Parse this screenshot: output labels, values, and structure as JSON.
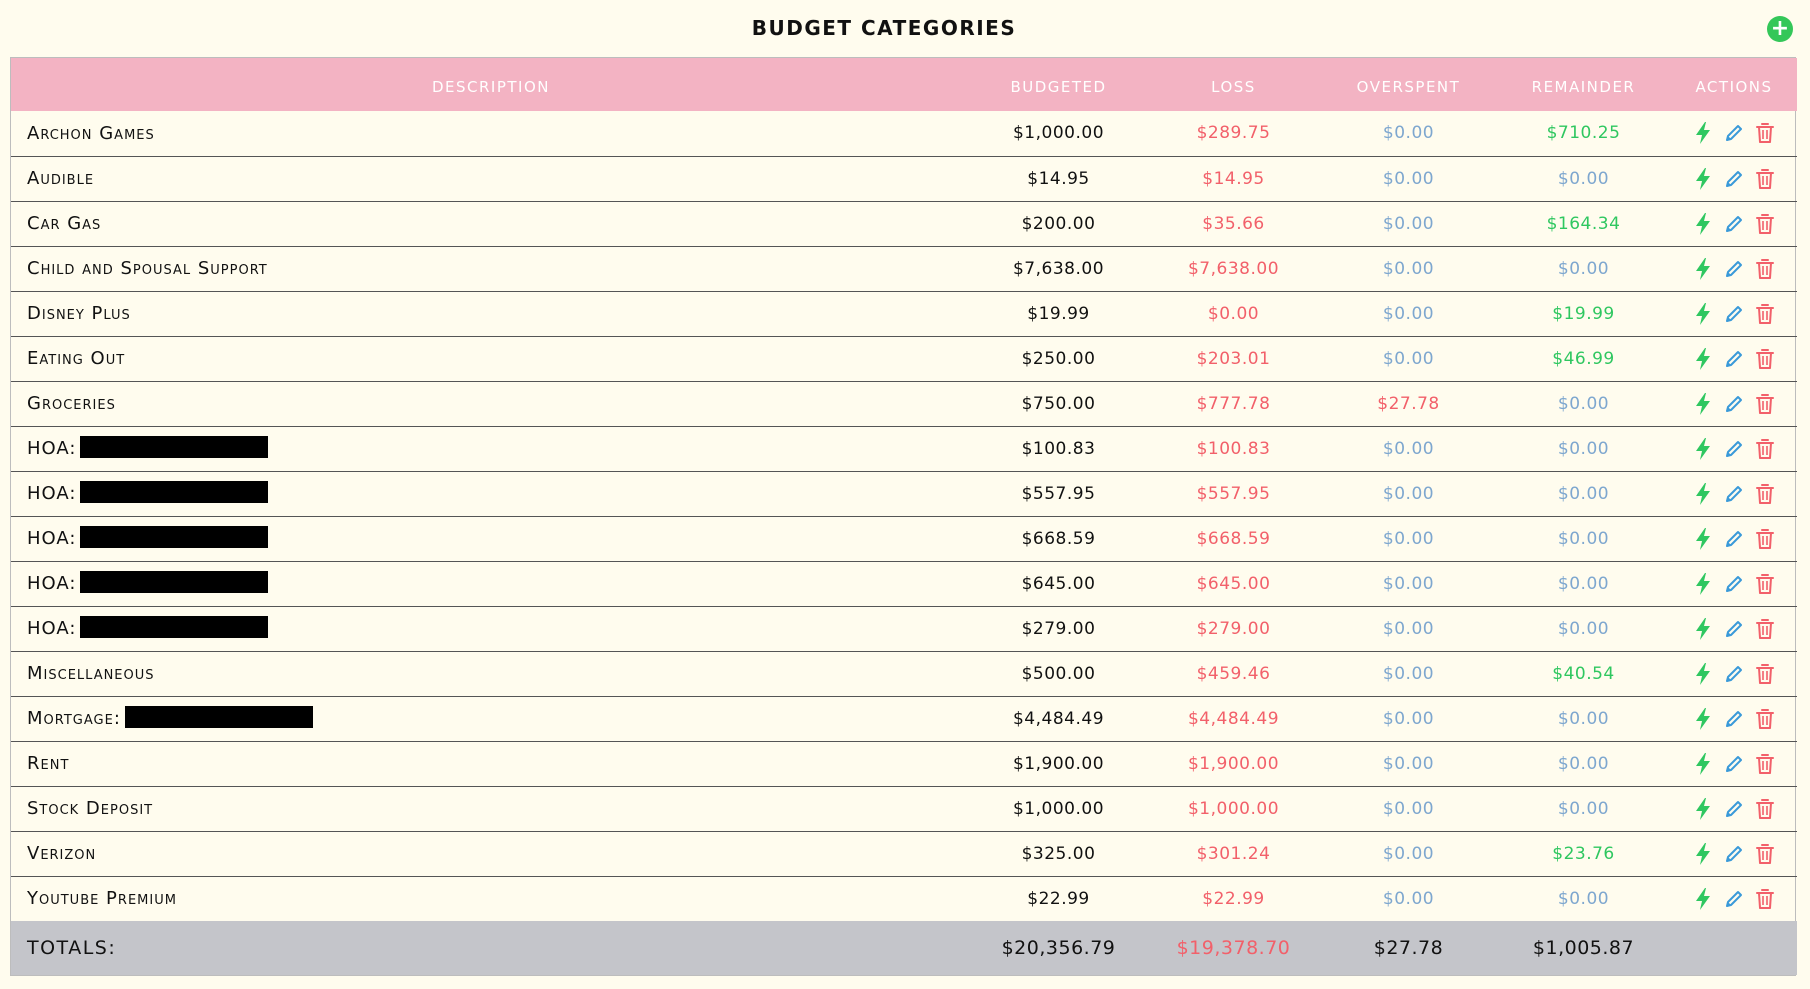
{
  "header": {
    "title": "BUDGET CATEGORIES",
    "add_label": "+"
  },
  "columns": [
    "Description",
    "Budgeted",
    "Loss",
    "Overspent",
    "Remainder",
    "Actions"
  ],
  "rows": [
    {
      "description": "Archon Games",
      "redacted": false,
      "budgeted": "$1,000.00",
      "loss": "$289.75",
      "overspent": "$0.00",
      "remainder": "$710.25"
    },
    {
      "description": "Audible",
      "redacted": false,
      "budgeted": "$14.95",
      "loss": "$14.95",
      "overspent": "$0.00",
      "remainder": "$0.00"
    },
    {
      "description": "Car Gas",
      "redacted": false,
      "budgeted": "$200.00",
      "loss": "$35.66",
      "overspent": "$0.00",
      "remainder": "$164.34"
    },
    {
      "description": "Child and Spousal Support",
      "redacted": false,
      "budgeted": "$7,638.00",
      "loss": "$7,638.00",
      "overspent": "$0.00",
      "remainder": "$0.00"
    },
    {
      "description": "Disney Plus",
      "redacted": false,
      "budgeted": "$19.99",
      "loss": "$0.00",
      "overspent": "$0.00",
      "remainder": "$19.99"
    },
    {
      "description": "Eating Out",
      "redacted": false,
      "budgeted": "$250.00",
      "loss": "$203.01",
      "overspent": "$0.00",
      "remainder": "$46.99"
    },
    {
      "description": "Groceries",
      "redacted": false,
      "budgeted": "$750.00",
      "loss": "$777.78",
      "overspent": "$27.78",
      "remainder": "$0.00"
    },
    {
      "description": "HOA:",
      "redacted": true,
      "budgeted": "$100.83",
      "loss": "$100.83",
      "overspent": "$0.00",
      "remainder": "$0.00"
    },
    {
      "description": "HOA:",
      "redacted": true,
      "budgeted": "$557.95",
      "loss": "$557.95",
      "overspent": "$0.00",
      "remainder": "$0.00"
    },
    {
      "description": "HOA:",
      "redacted": true,
      "budgeted": "$668.59",
      "loss": "$668.59",
      "overspent": "$0.00",
      "remainder": "$0.00"
    },
    {
      "description": "HOA:",
      "redacted": true,
      "budgeted": "$645.00",
      "loss": "$645.00",
      "overspent": "$0.00",
      "remainder": "$0.00"
    },
    {
      "description": "HOA:",
      "redacted": true,
      "budgeted": "$279.00",
      "loss": "$279.00",
      "overspent": "$0.00",
      "remainder": "$0.00"
    },
    {
      "description": "Miscellaneous",
      "redacted": false,
      "budgeted": "$500.00",
      "loss": "$459.46",
      "overspent": "$0.00",
      "remainder": "$40.54"
    },
    {
      "description": "Mortgage:",
      "redacted": true,
      "budgeted": "$4,484.49",
      "loss": "$4,484.49",
      "overspent": "$0.00",
      "remainder": "$0.00"
    },
    {
      "description": "Rent",
      "redacted": false,
      "budgeted": "$1,900.00",
      "loss": "$1,900.00",
      "overspent": "$0.00",
      "remainder": "$0.00"
    },
    {
      "description": "Stock Deposit",
      "redacted": false,
      "budgeted": "$1,000.00",
      "loss": "$1,000.00",
      "overspent": "$0.00",
      "remainder": "$0.00"
    },
    {
      "description": "Verizon",
      "redacted": false,
      "budgeted": "$325.00",
      "loss": "$301.24",
      "overspent": "$0.00",
      "remainder": "$23.76"
    },
    {
      "description": "Youtube Premium",
      "redacted": false,
      "budgeted": "$22.99",
      "loss": "$22.99",
      "overspent": "$0.00",
      "remainder": "$0.00"
    }
  ],
  "totals": {
    "label": "TOTALS:",
    "budgeted": "$20,356.79",
    "loss": "$19,378.70",
    "overspent": "$27.78",
    "remainder": "$1,005.87"
  },
  "icons": {
    "add": "plus-circle-icon",
    "apply": "lightning-bolt-icon",
    "edit": "pencil-icon",
    "delete": "trash-icon"
  },
  "colors": {
    "header_bg": "#f3b3c3",
    "loss": "#f2606a",
    "zero": "#7ea7cf",
    "positive": "#2fc760",
    "totals_bg": "#c4c5ca",
    "add": "#34c759",
    "edit": "#3a9ad9",
    "delete": "#f2606a"
  }
}
